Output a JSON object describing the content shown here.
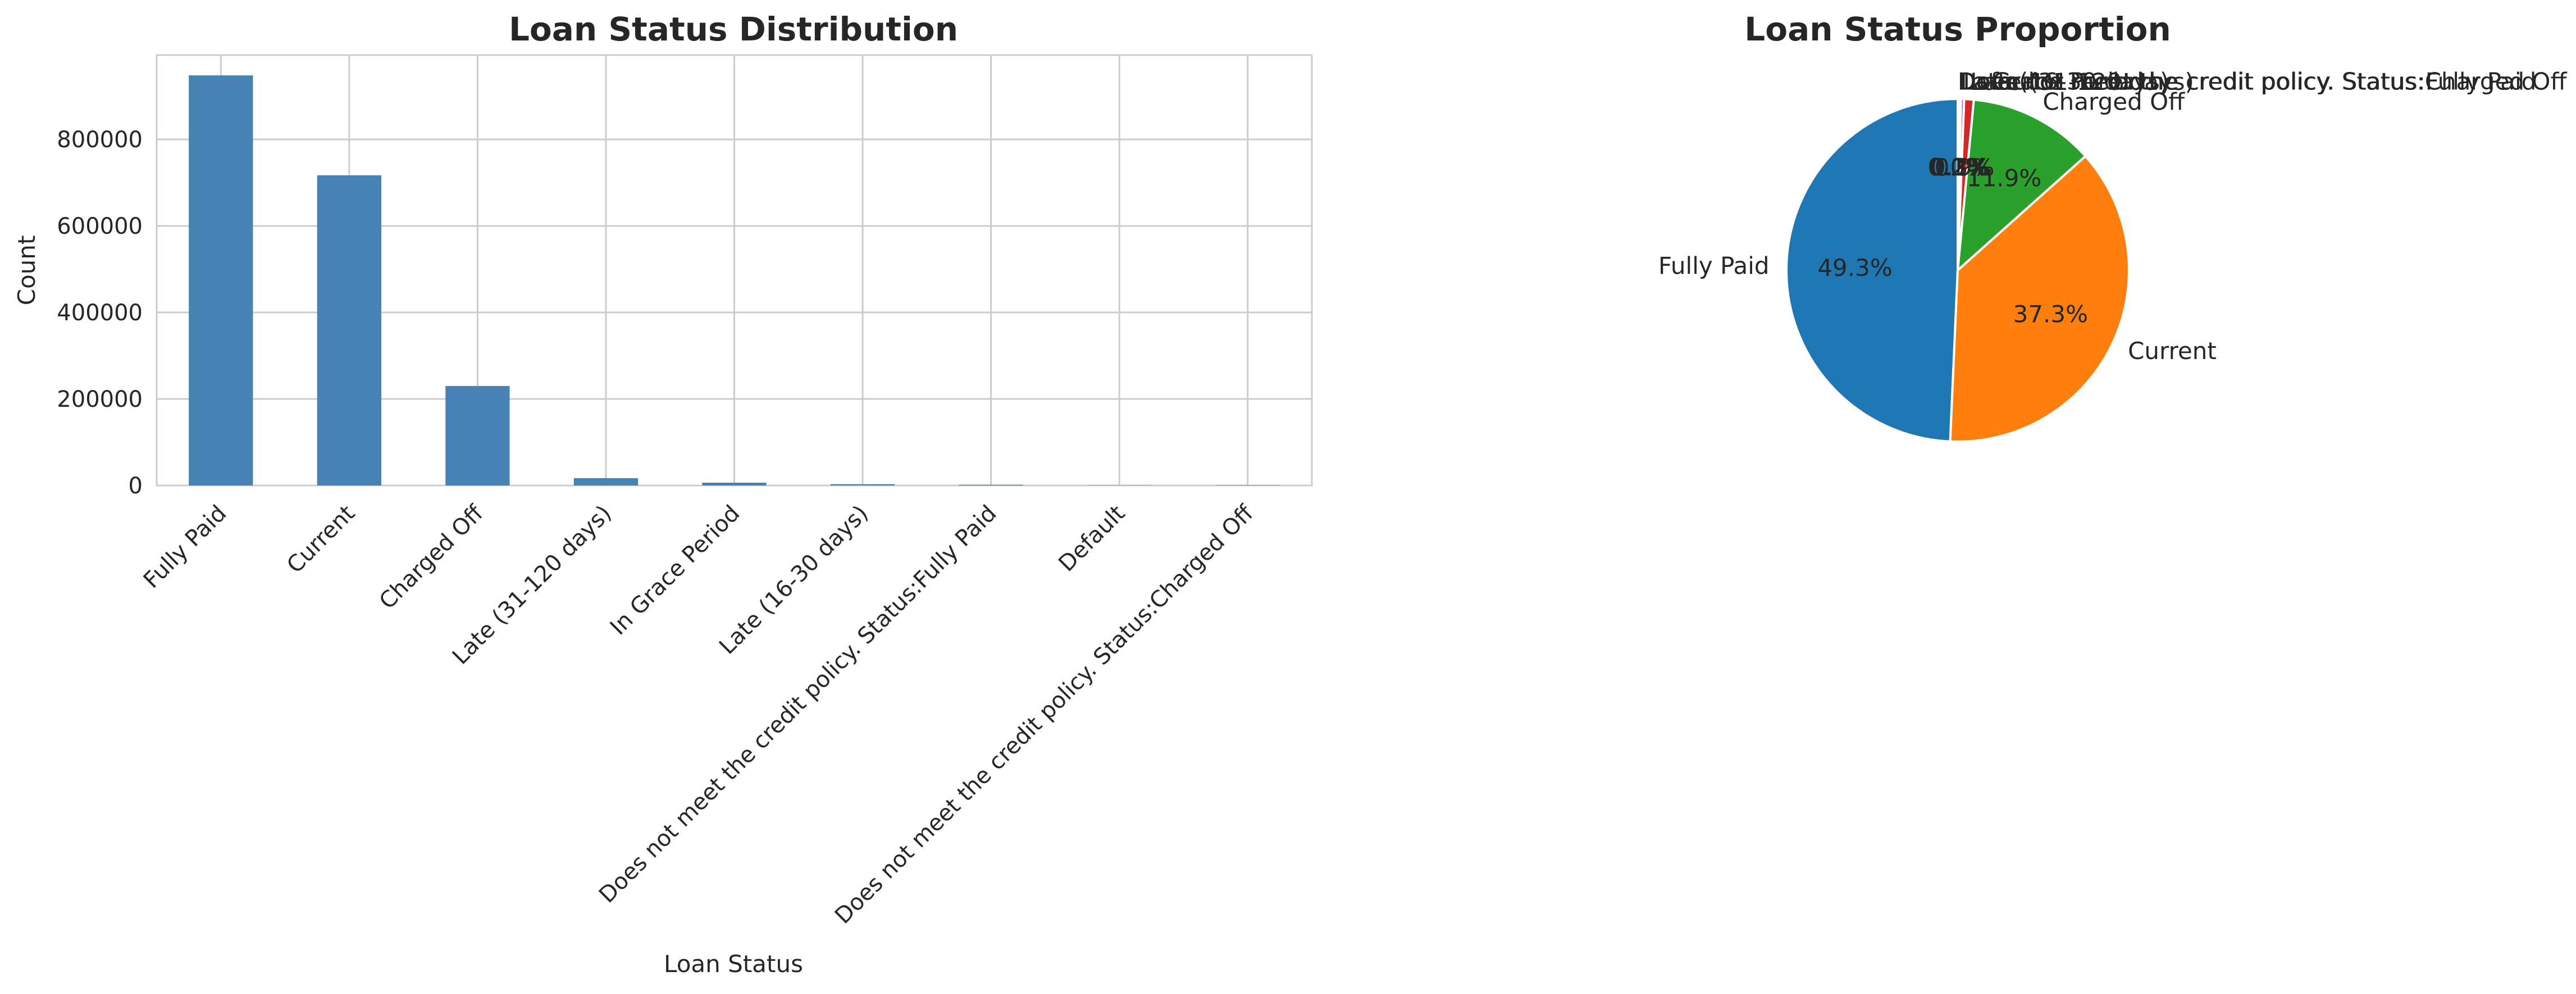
{
  "chart_data": [
    {
      "type": "bar",
      "title": "Loan Status Distribution",
      "xlabel": "Loan Status",
      "ylabel": "Count",
      "categories": [
        "Fully Paid",
        "Current",
        "Charged Off",
        "Late (31-120 days)",
        "In Grace Period",
        "Late (16-30 days)",
        "Does not meet the credit policy. Status:Fully Paid",
        "Default",
        "Does not meet the credit policy. Status:Charged Off"
      ],
      "values": [
        948000,
        717000,
        230000,
        17000,
        6500,
        3000,
        1800,
        500,
        700
      ],
      "ylim": [
        0,
        995000
      ],
      "yticks": [
        "0",
        "200000",
        "400000",
        "600000",
        "800000"
      ],
      "ytick_values": [
        0,
        200000,
        400000,
        600000,
        800000
      ],
      "grid": true,
      "color": "#4682b4"
    },
    {
      "type": "pie",
      "title": "Loan Status Proportion",
      "labels": [
        "Fully Paid",
        "Current",
        "Charged Off",
        "Late (31-120 days)",
        "In Grace Period",
        "Late (16-30 days)",
        "Does not meet the credit policy. Status:Fully Paid",
        "Default",
        "Does not meet the credit policy. Status:Charged Off"
      ],
      "values": [
        49.3,
        37.3,
        11.9,
        0.9,
        0.3,
        0.2,
        0.1,
        0.0,
        0.0
      ],
      "pct_labels": [
        "49.3%",
        "37.3%",
        "11.9%",
        "0.9%",
        "0.3%",
        "0.2%",
        "0.1%",
        "0.0%",
        "0.0%"
      ],
      "colors": [
        "#1f77b4",
        "#ff7f0e",
        "#2ca02c",
        "#d62728",
        "#9467bd",
        "#8c564b",
        "#e377c2",
        "#7f7f7f",
        "#bcbd22"
      ]
    }
  ]
}
